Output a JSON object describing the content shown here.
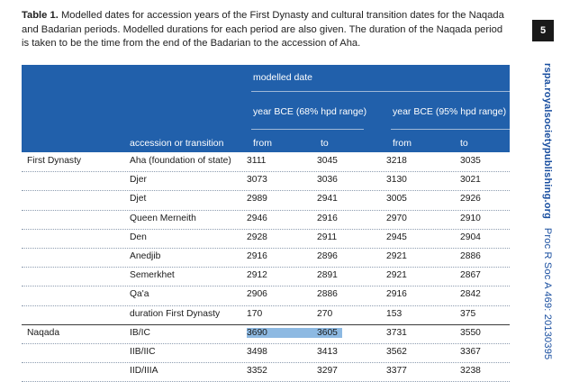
{
  "caption": {
    "label": "Table 1.",
    "text": "Modelled dates for accession years of the First Dynasty and cultural transition dates for the Naqada and Badarian periods. Modelled durations for each period are also given. The duration of the Naqada period is taken to be the time from the end of the Badarian to the accession of Aha."
  },
  "page_number": "5",
  "side": {
    "url": "rspa.royalsocietypublishing.org",
    "citation": "Proc R Soc A 469: 20130395"
  },
  "header": {
    "modelled_date": "modelled date",
    "range68": "year BCE (68% hpd range)",
    "range95": "year BCE (95% hpd range)",
    "col_label": "accession or transition",
    "from68": "from",
    "to68": "to",
    "from95": "from",
    "to95": "to"
  },
  "rows": [
    {
      "group": "First Dynasty",
      "label": "Aha (foundation of state)",
      "v": [
        "3111",
        "3045",
        "3218",
        "3035"
      ]
    },
    {
      "group": "",
      "label": "Djer",
      "v": [
        "3073",
        "3036",
        "3130",
        "3021"
      ]
    },
    {
      "group": "",
      "label": "Djet",
      "v": [
        "2989",
        "2941",
        "3005",
        "2926"
      ]
    },
    {
      "group": "",
      "label": "Queen Merneith",
      "v": [
        "2946",
        "2916",
        "2970",
        "2910"
      ]
    },
    {
      "group": "",
      "label": "Den",
      "v": [
        "2928",
        "2911",
        "2945",
        "2904"
      ]
    },
    {
      "group": "",
      "label": "Anedjib",
      "v": [
        "2916",
        "2896",
        "2921",
        "2886"
      ]
    },
    {
      "group": "",
      "label": "Semerkhet",
      "v": [
        "2912",
        "2891",
        "2921",
        "2867"
      ]
    },
    {
      "group": "",
      "label": "Qa'a",
      "v": [
        "2906",
        "2886",
        "2916",
        "2842"
      ]
    },
    {
      "group": "",
      "label": "duration First Dynasty",
      "v": [
        "170",
        "270",
        "153",
        "375"
      ]
    },
    {
      "group": "Naqada",
      "label": "IB/IC",
      "v": [
        "3690",
        "3605",
        "3731",
        "3550"
      ]
    },
    {
      "group": "",
      "label": "IIB/IIC",
      "v": [
        "3498",
        "3413",
        "3562",
        "3367"
      ]
    },
    {
      "group": "",
      "label": "IID/IIIA",
      "v": [
        "3352",
        "3297",
        "3377",
        "3238"
      ]
    }
  ]
}
